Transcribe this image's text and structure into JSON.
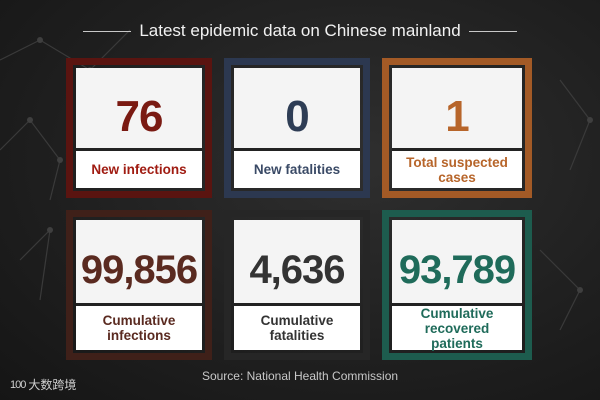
{
  "title": "Latest epidemic data on Chinese mainland",
  "cards": [
    {
      "value": "76",
      "label": "New infections"
    },
    {
      "value": "0",
      "label": "New fatalities"
    },
    {
      "value": "1",
      "label": "Total suspected cases"
    },
    {
      "value": "99,856",
      "label": "Cumulative infections"
    },
    {
      "value": "4,636",
      "label": "Cumulative fatalities"
    },
    {
      "value": "93,789",
      "label": "Cumulative recovered patients"
    }
  ],
  "colors": {
    "infections": "#7a1a12",
    "fatalities": "#2e3d55",
    "suspected": "#b7652a",
    "cumulative_infections": "#5a2a20",
    "cumulative_fatalities": "#333333",
    "recovered": "#1f6b5a"
  },
  "source": "Source: National Health Commission",
  "brand": {
    "logo": "100",
    "name": "大数跨境"
  }
}
